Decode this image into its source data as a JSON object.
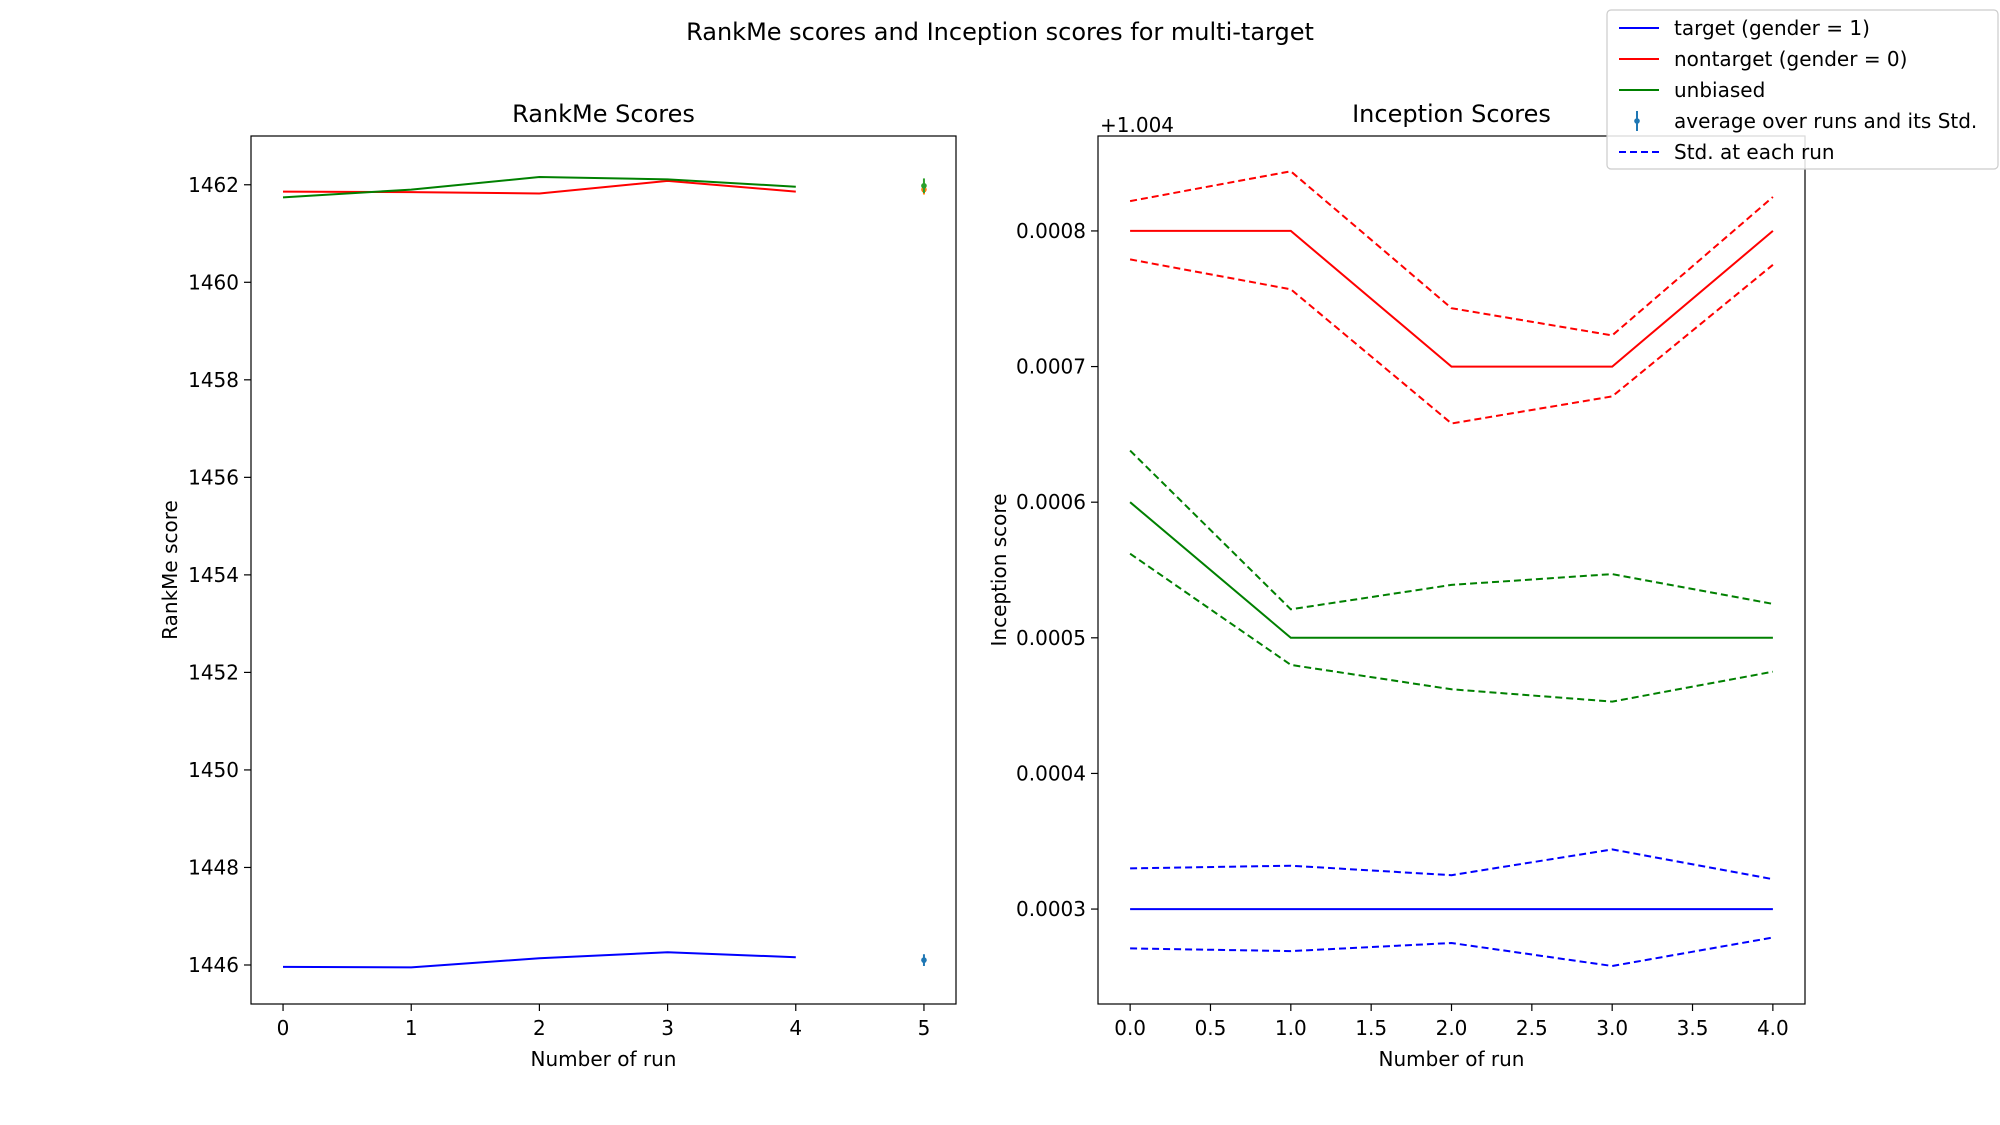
{
  "figure": {
    "suptitle": "RankMe scores and Inception scores for multi-target"
  },
  "legend": {
    "placement": "top-right",
    "entries": [
      {
        "label": "target (gender = 1)",
        "color": "#0000ff",
        "style": "solid"
      },
      {
        "label": "nontarget (gender = 0)",
        "color": "#ff0000",
        "style": "solid"
      },
      {
        "label": "unbiased",
        "color": "#008000",
        "style": "solid"
      },
      {
        "label": "average over runs and its Std.",
        "color": "#1f77b4",
        "style": "errorbar"
      },
      {
        "label": "Std. at each run",
        "color": "#0000ff",
        "style": "dashed"
      }
    ]
  },
  "chart_data": [
    {
      "type": "line",
      "title": "RankMe Scores",
      "xlabel": "Number of run",
      "ylabel": "RankMe score",
      "xlim": [
        -0.25,
        5.25
      ],
      "ylim": [
        1445.2,
        1463.0
      ],
      "xticks": [
        0,
        1,
        2,
        3,
        4,
        5
      ],
      "xtick_labels": [
        "0",
        "1",
        "2",
        "3",
        "4",
        "5"
      ],
      "yticks": [
        1446,
        1448,
        1450,
        1452,
        1454,
        1456,
        1458,
        1460,
        1462
      ],
      "ytick_labels": [
        "1446",
        "1448",
        "1450",
        "1452",
        "1454",
        "1456",
        "1458",
        "1460",
        "1462"
      ],
      "grid": false,
      "x": [
        0,
        1,
        2,
        3,
        4
      ],
      "series": [
        {
          "color": "#0000ff",
          "style": "solid",
          "values": [
            1445.96,
            1445.95,
            1446.14,
            1446.26,
            1446.16
          ]
        },
        {
          "color": "#ff0000",
          "style": "solid",
          "values": [
            1461.86,
            1461.85,
            1461.82,
            1462.08,
            1461.86
          ]
        },
        {
          "color": "#008000",
          "style": "solid",
          "values": [
            1461.74,
            1461.9,
            1462.16,
            1462.11,
            1461.96
          ]
        }
      ],
      "averages": [
        {
          "x": 5,
          "y": 1446.1,
          "err": 0.12,
          "color": "#1f77b4"
        },
        {
          "x": 5,
          "y": 1461.9,
          "err": 0.1,
          "color": "#ff7f0e"
        },
        {
          "x": 5,
          "y": 1461.98,
          "err": 0.15,
          "color": "#2ca02c"
        }
      ]
    },
    {
      "type": "line",
      "title": "Inception Scores",
      "xlabel": "Number of run",
      "ylabel": "Inception score",
      "offset_label": "+1.004",
      "xlim": [
        -0.2,
        4.2
      ],
      "ylim": [
        0.00023,
        0.00087
      ],
      "xticks": [
        0,
        0.5,
        1,
        1.5,
        2,
        2.5,
        3,
        3.5,
        4
      ],
      "xtick_labels": [
        "0.0",
        "0.5",
        "1.0",
        "1.5",
        "2.0",
        "2.5",
        "3.0",
        "3.5",
        "4.0"
      ],
      "yticks": [
        0.0003,
        0.0004,
        0.0005,
        0.0006,
        0.0007,
        0.0008
      ],
      "ytick_labels": [
        "0.0003",
        "0.0004",
        "0.0005",
        "0.0006",
        "0.0007",
        "0.0008"
      ],
      "grid": false,
      "x": [
        0,
        1,
        2,
        3,
        4
      ],
      "series": [
        {
          "color": "#0000ff",
          "style": "solid",
          "values": [
            0.0003,
            0.0003,
            0.0003,
            0.0003,
            0.0003
          ]
        },
        {
          "color": "#0000ff",
          "style": "dashed",
          "values": [
            0.00033,
            0.000332,
            0.000325,
            0.000344,
            0.000322
          ]
        },
        {
          "color": "#0000ff",
          "style": "dashed",
          "values": [
            0.000271,
            0.000269,
            0.000275,
            0.000258,
            0.000279
          ]
        },
        {
          "color": "#ff0000",
          "style": "solid",
          "values": [
            0.0008,
            0.0008,
            0.0007,
            0.0007,
            0.0008
          ]
        },
        {
          "color": "#ff0000",
          "style": "dashed",
          "values": [
            0.000822,
            0.000844,
            0.000743,
            0.000723,
            0.000825
          ]
        },
        {
          "color": "#ff0000",
          "style": "dashed",
          "values": [
            0.000779,
            0.000757,
            0.000658,
            0.000678,
            0.000775
          ]
        },
        {
          "color": "#008000",
          "style": "solid",
          "values": [
            0.0006,
            0.0005,
            0.0005,
            0.0005,
            0.0005
          ]
        },
        {
          "color": "#008000",
          "style": "dashed",
          "values": [
            0.000638,
            0.000521,
            0.000539,
            0.000547,
            0.000525
          ]
        },
        {
          "color": "#008000",
          "style": "dashed",
          "values": [
            0.000562,
            0.00048,
            0.000462,
            0.000453,
            0.000475
          ]
        }
      ]
    }
  ]
}
